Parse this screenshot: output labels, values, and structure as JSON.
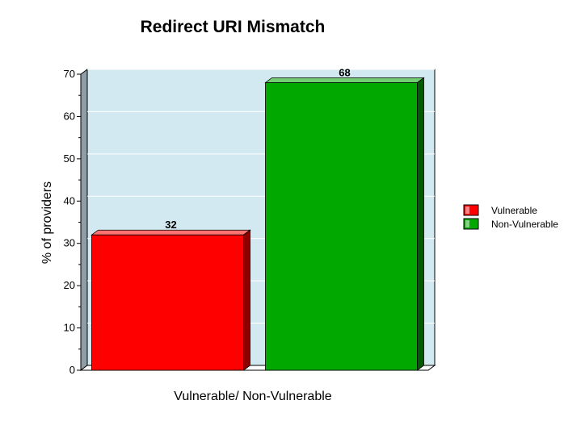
{
  "chart_data": {
    "type": "bar",
    "title": "Redirect URI Mismatch",
    "xlabel": "Vulnerable/ Non-Vulnerable",
    "ylabel": "% of providers",
    "ylim": [
      0,
      70
    ],
    "yticks": [
      0,
      10,
      20,
      30,
      40,
      50,
      60,
      70
    ],
    "categories": [
      "Vulnerable",
      "Non-Vulnerable"
    ],
    "values": [
      32,
      68
    ],
    "data_labels": [
      "32",
      "68"
    ],
    "colors": [
      "#ff0000",
      "#00a800"
    ],
    "legend": {
      "position": "right",
      "entries": [
        "Vulnerable",
        "Non-Vulnerable"
      ]
    },
    "background_color": "#d3e9f2",
    "grid": true,
    "three_d": true
  }
}
